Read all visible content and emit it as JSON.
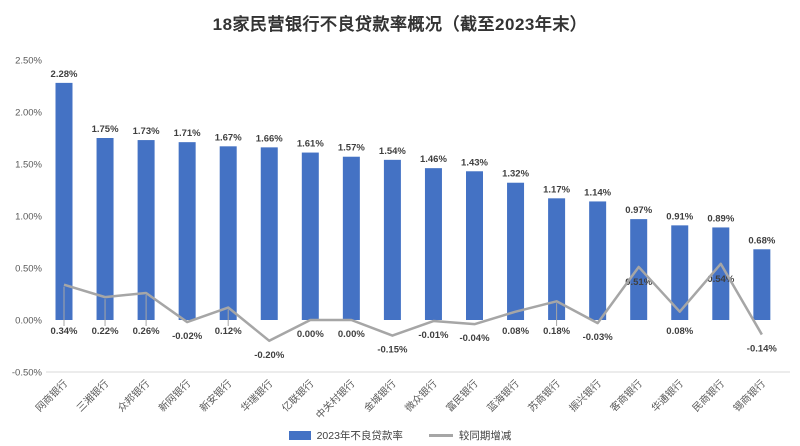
{
  "title": "18家民营银行不良贷款率概况（截至2023年末）",
  "legend": {
    "bar_label": "2023年不良贷款率",
    "line_label": "较同期增减"
  },
  "colors": {
    "bar": "#4472C4",
    "line": "#A6A6A6",
    "data_label": "#3F3F3F",
    "axis_text": "#595959",
    "axis_line": "#D9D9D9"
  },
  "chart_data": {
    "type": "bar",
    "subtype": "bar-line-combo",
    "title": "18家民营银行不良贷款率概况（截至2023年末）",
    "categories": [
      "网商银行",
      "三湘银行",
      "众邦银行",
      "新网银行",
      "新安银行",
      "华瑞银行",
      "亿联银行",
      "中关村银行",
      "金城银行",
      "微众银行",
      "富民银行",
      "蓝海银行",
      "苏商银行",
      "振兴银行",
      "客商银行",
      "华通银行",
      "民商银行",
      "锡商银行"
    ],
    "series": [
      {
        "name": "2023年不良贷款率",
        "type": "bar",
        "unit": "%",
        "values": [
          2.28,
          1.75,
          1.73,
          1.71,
          1.67,
          1.66,
          1.61,
          1.57,
          1.54,
          1.46,
          1.43,
          1.32,
          1.17,
          1.14,
          0.97,
          0.91,
          0.89,
          0.68
        ]
      },
      {
        "name": "较同期增减",
        "type": "line",
        "unit": "%",
        "values": [
          0.34,
          0.22,
          0.26,
          -0.02,
          0.12,
          -0.2,
          0.0,
          0.0,
          -0.15,
          -0.01,
          -0.04,
          0.08,
          0.18,
          -0.03,
          0.51,
          0.08,
          0.54,
          -0.14
        ]
      }
    ],
    "yaxis": {
      "min": -0.5,
      "max": 2.5,
      "step": 0.5,
      "tick_format": "0.00%"
    },
    "value_labels": true,
    "grid": false,
    "legend_position": "bottom"
  }
}
